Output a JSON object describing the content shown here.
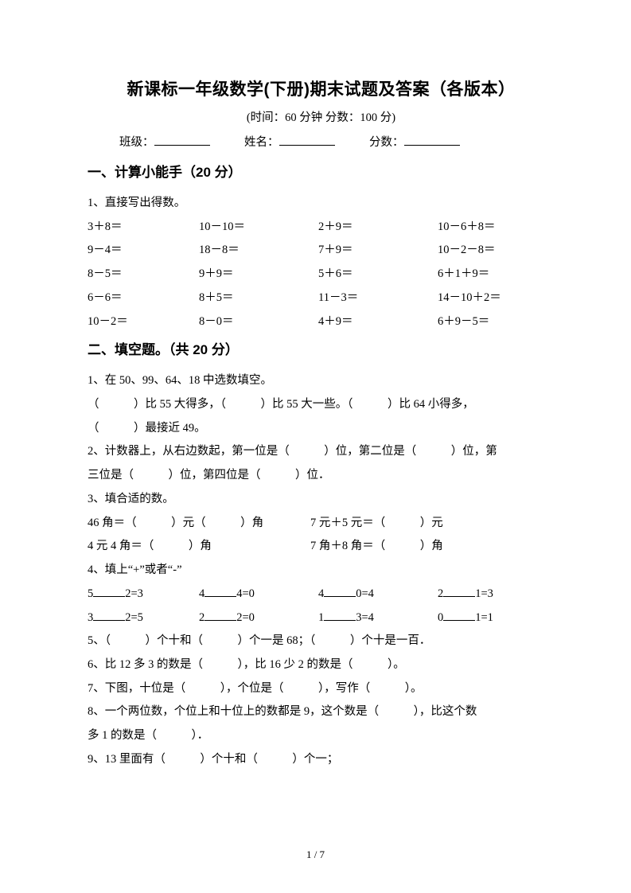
{
  "title": "新课标一年级数学(下册)期末试题及答案（各版本）",
  "subtitle": "(时间：60 分钟     分数：100 分)",
  "info": {
    "class_label": "班级：",
    "name_label": "姓名：",
    "score_label": "分数："
  },
  "sections": {
    "s1": {
      "heading": "一、计算小能手（20 分）",
      "q1": "1、直接写出得数。",
      "rows": [
        [
          "3＋8＝",
          "10－10＝",
          "2＋9＝",
          "10－6＋8＝"
        ],
        [
          "9－4＝",
          "18－8＝",
          "7＋9＝",
          "10－2－8＝"
        ],
        [
          "8－5＝",
          "9＋9＝",
          "5＋6＝",
          "6＋1＋9＝"
        ],
        [
          "6－6＝",
          "8＋5＝",
          "11－3＝",
          "14－10＋2＝"
        ],
        [
          "10－2＝",
          "8－0＝",
          "4＋9＝",
          "6＋9－5＝"
        ]
      ]
    },
    "s2": {
      "heading": "二、填空题。（共 20 分）",
      "q1a": "1、在 50、99、64、18 中选数填空。",
      "q1b": "（　　　）比 55 大得多，（　　　）比 55 大一些。（　　　）比 64 小得多，",
      "q1c": "（　　　）最接近 49。",
      "q2a": "2、计数器上，从右边数起，第一位是（　　　）位，第二位是（　　　）位，第",
      "q2b": "三位是（　　　）位，第四位是（　　　）位．",
      "q3": "3、填合适的数。",
      "q3rows": [
        [
          "46 角＝（　　　）元（　　　）角",
          "7 元＋5 元＝（　　　）元"
        ],
        [
          "4 元 4 角＝（　　　）角",
          "7 角＋8 角＝（　　　）角"
        ]
      ],
      "q4": "4、填上“+”或者“-”",
      "q4rows": [
        [
          [
            "5",
            "2=3"
          ],
          [
            "4",
            "4=0"
          ],
          [
            "4",
            "0=4"
          ],
          [
            "2",
            "1=3"
          ]
        ],
        [
          [
            "3",
            "2=5"
          ],
          [
            "2",
            "2=0"
          ],
          [
            "1",
            "3=4"
          ],
          [
            "0",
            "1=1"
          ]
        ]
      ],
      "q5": "5、（　　　）个十和（　　　）个一是 68；（　　　）个十是一百．",
      "q6": "6、比 12 多 3 的数是（　　　），比 16 少 2 的数是（　　　）。",
      "q7": "7、下图，十位是（　　　），个位是（　　　），写作（　　　）。",
      "q8a": "8、一个两位数，个位上和十位上的数都是 9，这个数是（　　　），比这个数",
      "q8b": "多 1 的数是（　　　）．",
      "q9": "9、13 里面有（　　　）个十和（　　　）个一；"
    }
  },
  "footer": "1 / 7"
}
